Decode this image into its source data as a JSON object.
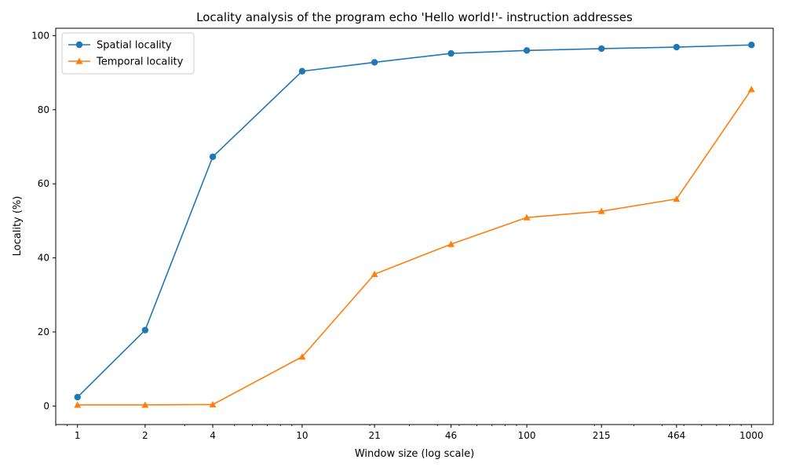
{
  "chart_data": {
    "type": "line",
    "title": "Locality analysis of the program echo 'Hello world!'- instruction addresses",
    "xlabel": "Window size (log scale)",
    "ylabel": "Locality (%)",
    "x_scale": "log",
    "xlim": [
      0.8,
      1250
    ],
    "ylim": [
      -5,
      102
    ],
    "x": [
      1,
      2,
      4,
      10,
      21,
      46,
      100,
      215,
      464,
      1000
    ],
    "x_tick_labels": [
      "1",
      "2",
      "4",
      "10",
      "21",
      "46",
      "100",
      "215",
      "464",
      "1000"
    ],
    "y_ticks": [
      0,
      20,
      40,
      60,
      80,
      100
    ],
    "grid": false,
    "legend_position": "top-left",
    "series": [
      {
        "name": "Spatial locality",
        "color": "#1f77b4",
        "marker": "circle",
        "values": [
          2.4,
          20.5,
          67.3,
          90.4,
          92.8,
          95.2,
          96.0,
          96.5,
          96.9,
          97.5
        ]
      },
      {
        "name": "Temporal locality",
        "color": "#ff7f0e",
        "marker": "triangle",
        "values": [
          0.3,
          0.3,
          0.4,
          13.3,
          35.6,
          43.7,
          50.9,
          52.6,
          55.9,
          85.5
        ]
      }
    ]
  }
}
